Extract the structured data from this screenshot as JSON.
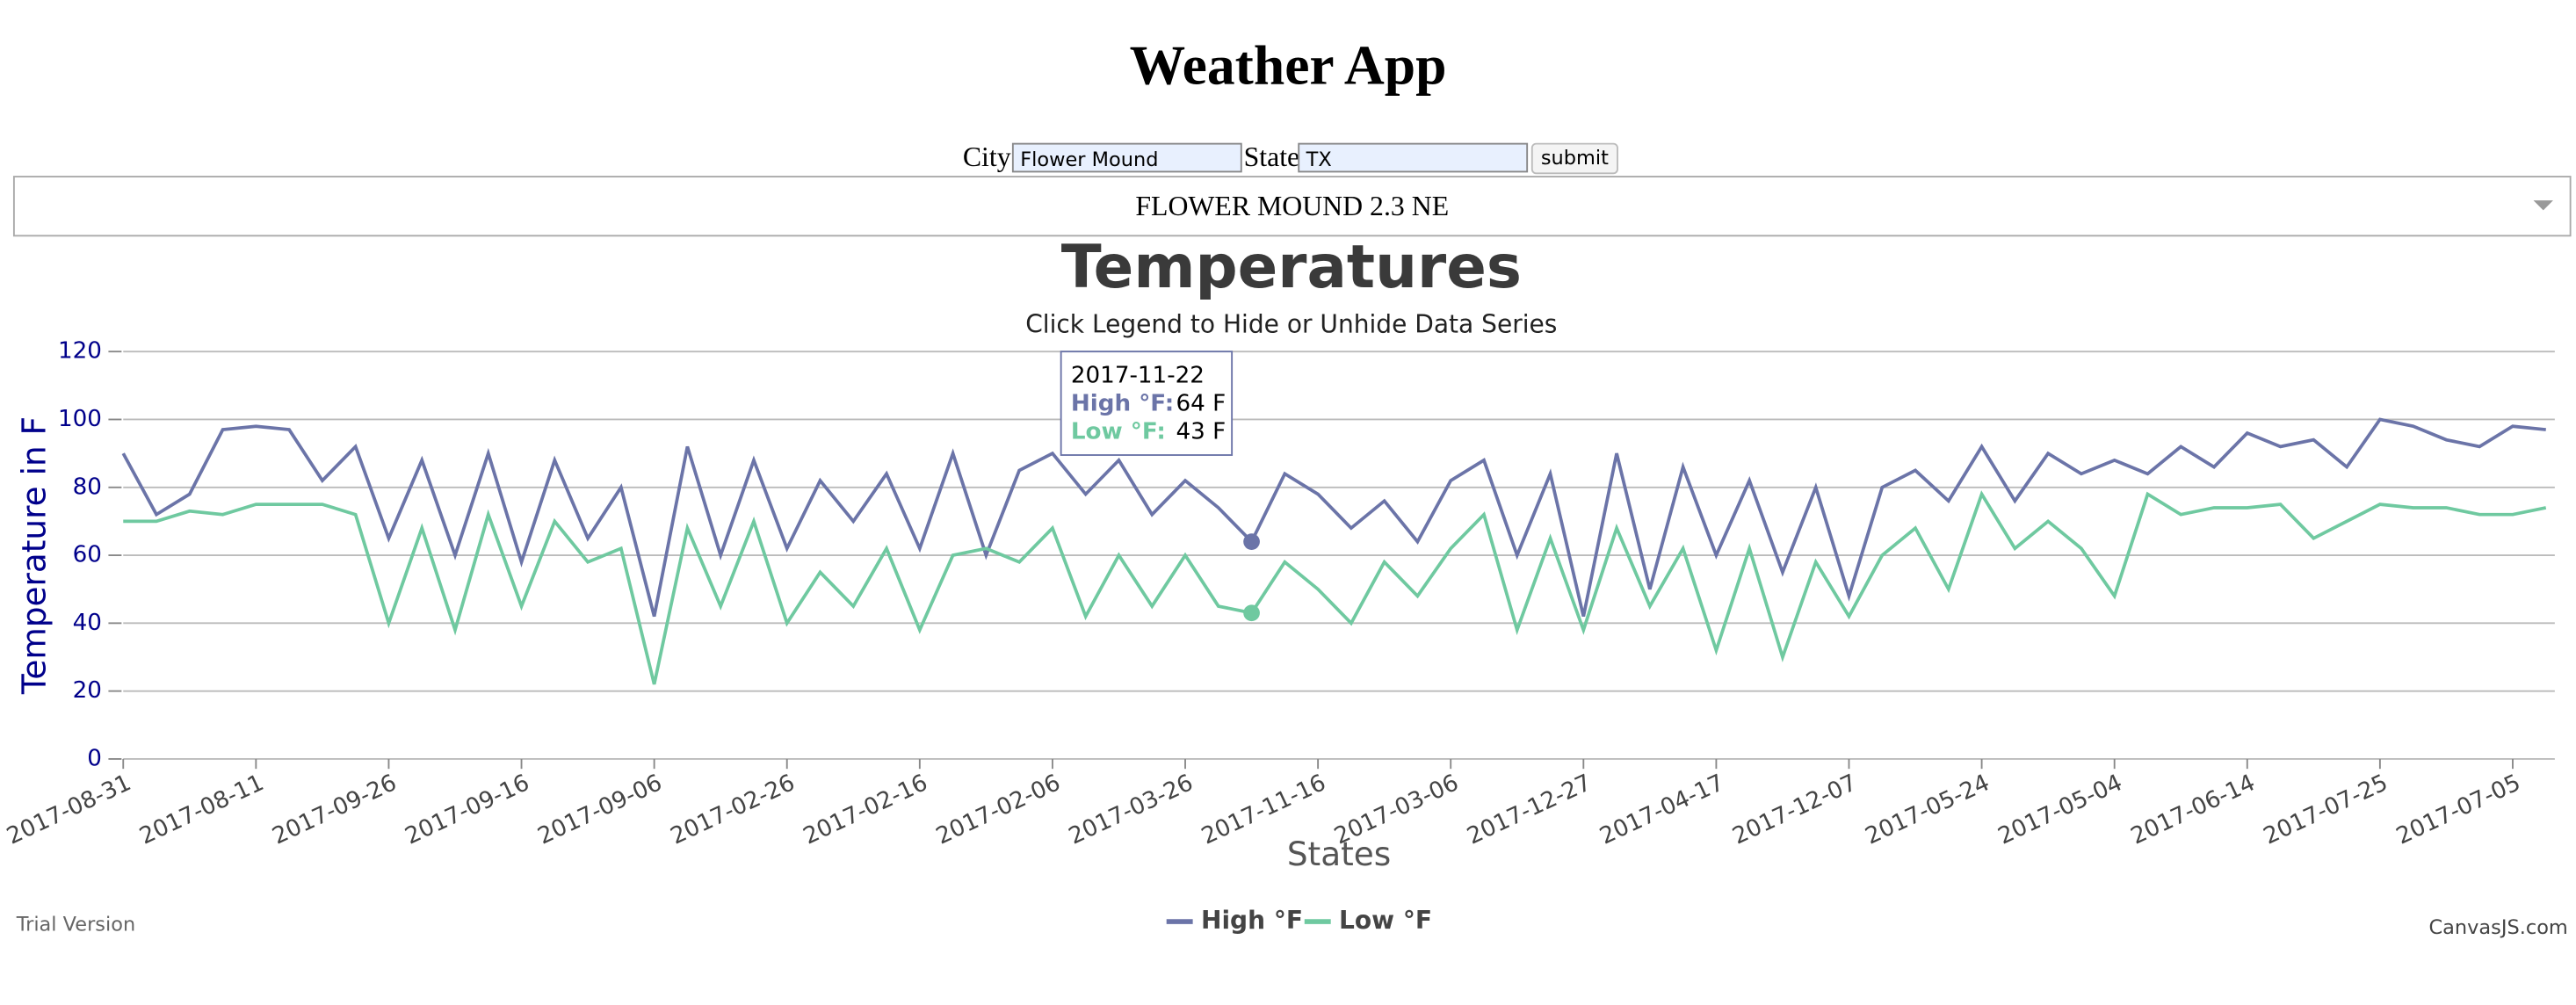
{
  "header": {
    "title": "Weather App"
  },
  "form": {
    "city_label": "City",
    "city_value": "Flower Mound",
    "state_label": "State",
    "state_value": "TX",
    "submit": "submit",
    "station": "FLOWER MOUND 2.3 NE"
  },
  "chart_data": {
    "type": "line",
    "title": "Temperatures",
    "subtitle": "Click Legend to Hide or Unhide Data Series",
    "xlabel": "States",
    "ylabel": "Temperature in F",
    "categories": [
      "2017-08-31",
      null,
      null,
      null,
      "2017-08-11",
      null,
      null,
      null,
      "2017-09-26",
      null,
      null,
      null,
      "2017-09-16",
      null,
      null,
      null,
      "2017-09-06",
      null,
      null,
      null,
      "2017-02-26",
      null,
      null,
      null,
      "2017-02-16",
      null,
      null,
      null,
      "2017-02-06",
      null,
      null,
      null,
      "2017-03-26",
      null,
      null,
      null,
      "2017-11-16",
      null,
      null,
      null,
      "2017-03-06",
      null,
      null,
      null,
      "2017-12-27",
      null,
      null,
      null,
      "2017-04-17",
      null,
      null,
      null,
      "2017-12-07",
      null,
      null,
      null,
      "2017-05-24",
      null,
      null,
      null,
      "2017-05-04",
      null,
      null,
      null,
      "2017-06-14",
      null,
      null,
      null,
      "2017-07-25",
      null,
      null,
      null,
      "2017-07-05",
      null
    ],
    "series": [
      {
        "name": "High °F",
        "color": "#6b74a8",
        "values": [
          90,
          72,
          78,
          97,
          98,
          97,
          82,
          92,
          65,
          88,
          60,
          90,
          58,
          88,
          65,
          80,
          42,
          92,
          60,
          88,
          62,
          82,
          70,
          84,
          62,
          90,
          60,
          85,
          90,
          78,
          88,
          72,
          82,
          74,
          64,
          84,
          78,
          68,
          76,
          64,
          82,
          88,
          60,
          84,
          42,
          90,
          50,
          86,
          60,
          82,
          55,
          80,
          48,
          80,
          85,
          76,
          92,
          76,
          90,
          84,
          88,
          84,
          92,
          86,
          96,
          92,
          94,
          86,
          100,
          98,
          94,
          92,
          98,
          97
        ]
      },
      {
        "name": "Low °F",
        "color": "#6fc9a0",
        "values": [
          70,
          70,
          73,
          72,
          75,
          75,
          75,
          72,
          40,
          68,
          38,
          72,
          45,
          70,
          58,
          62,
          22,
          68,
          45,
          70,
          40,
          55,
          45,
          62,
          38,
          60,
          62,
          58,
          68,
          42,
          60,
          45,
          60,
          45,
          43,
          58,
          50,
          40,
          58,
          48,
          62,
          72,
          38,
          65,
          38,
          68,
          45,
          62,
          32,
          62,
          30,
          58,
          42,
          60,
          68,
          50,
          78,
          62,
          70,
          62,
          48,
          78,
          72,
          74,
          74,
          75,
          65,
          70,
          75,
          74,
          74,
          72,
          72,
          74
        ]
      }
    ],
    "ylim": [
      0,
      120
    ],
    "yticks": [
      0,
      20,
      40,
      60,
      80,
      100,
      120
    ],
    "grid": true,
    "legend": "bottom",
    "tooltip": {
      "title": "2017-11-22",
      "entries": [
        {
          "label": "High °F:",
          "value_label": "64 F"
        },
        {
          "label": "Low °F:",
          "value_label": "43 F"
        }
      ]
    }
  },
  "footer": {
    "left": "Trial Version",
    "right": "CanvasJS.com"
  }
}
